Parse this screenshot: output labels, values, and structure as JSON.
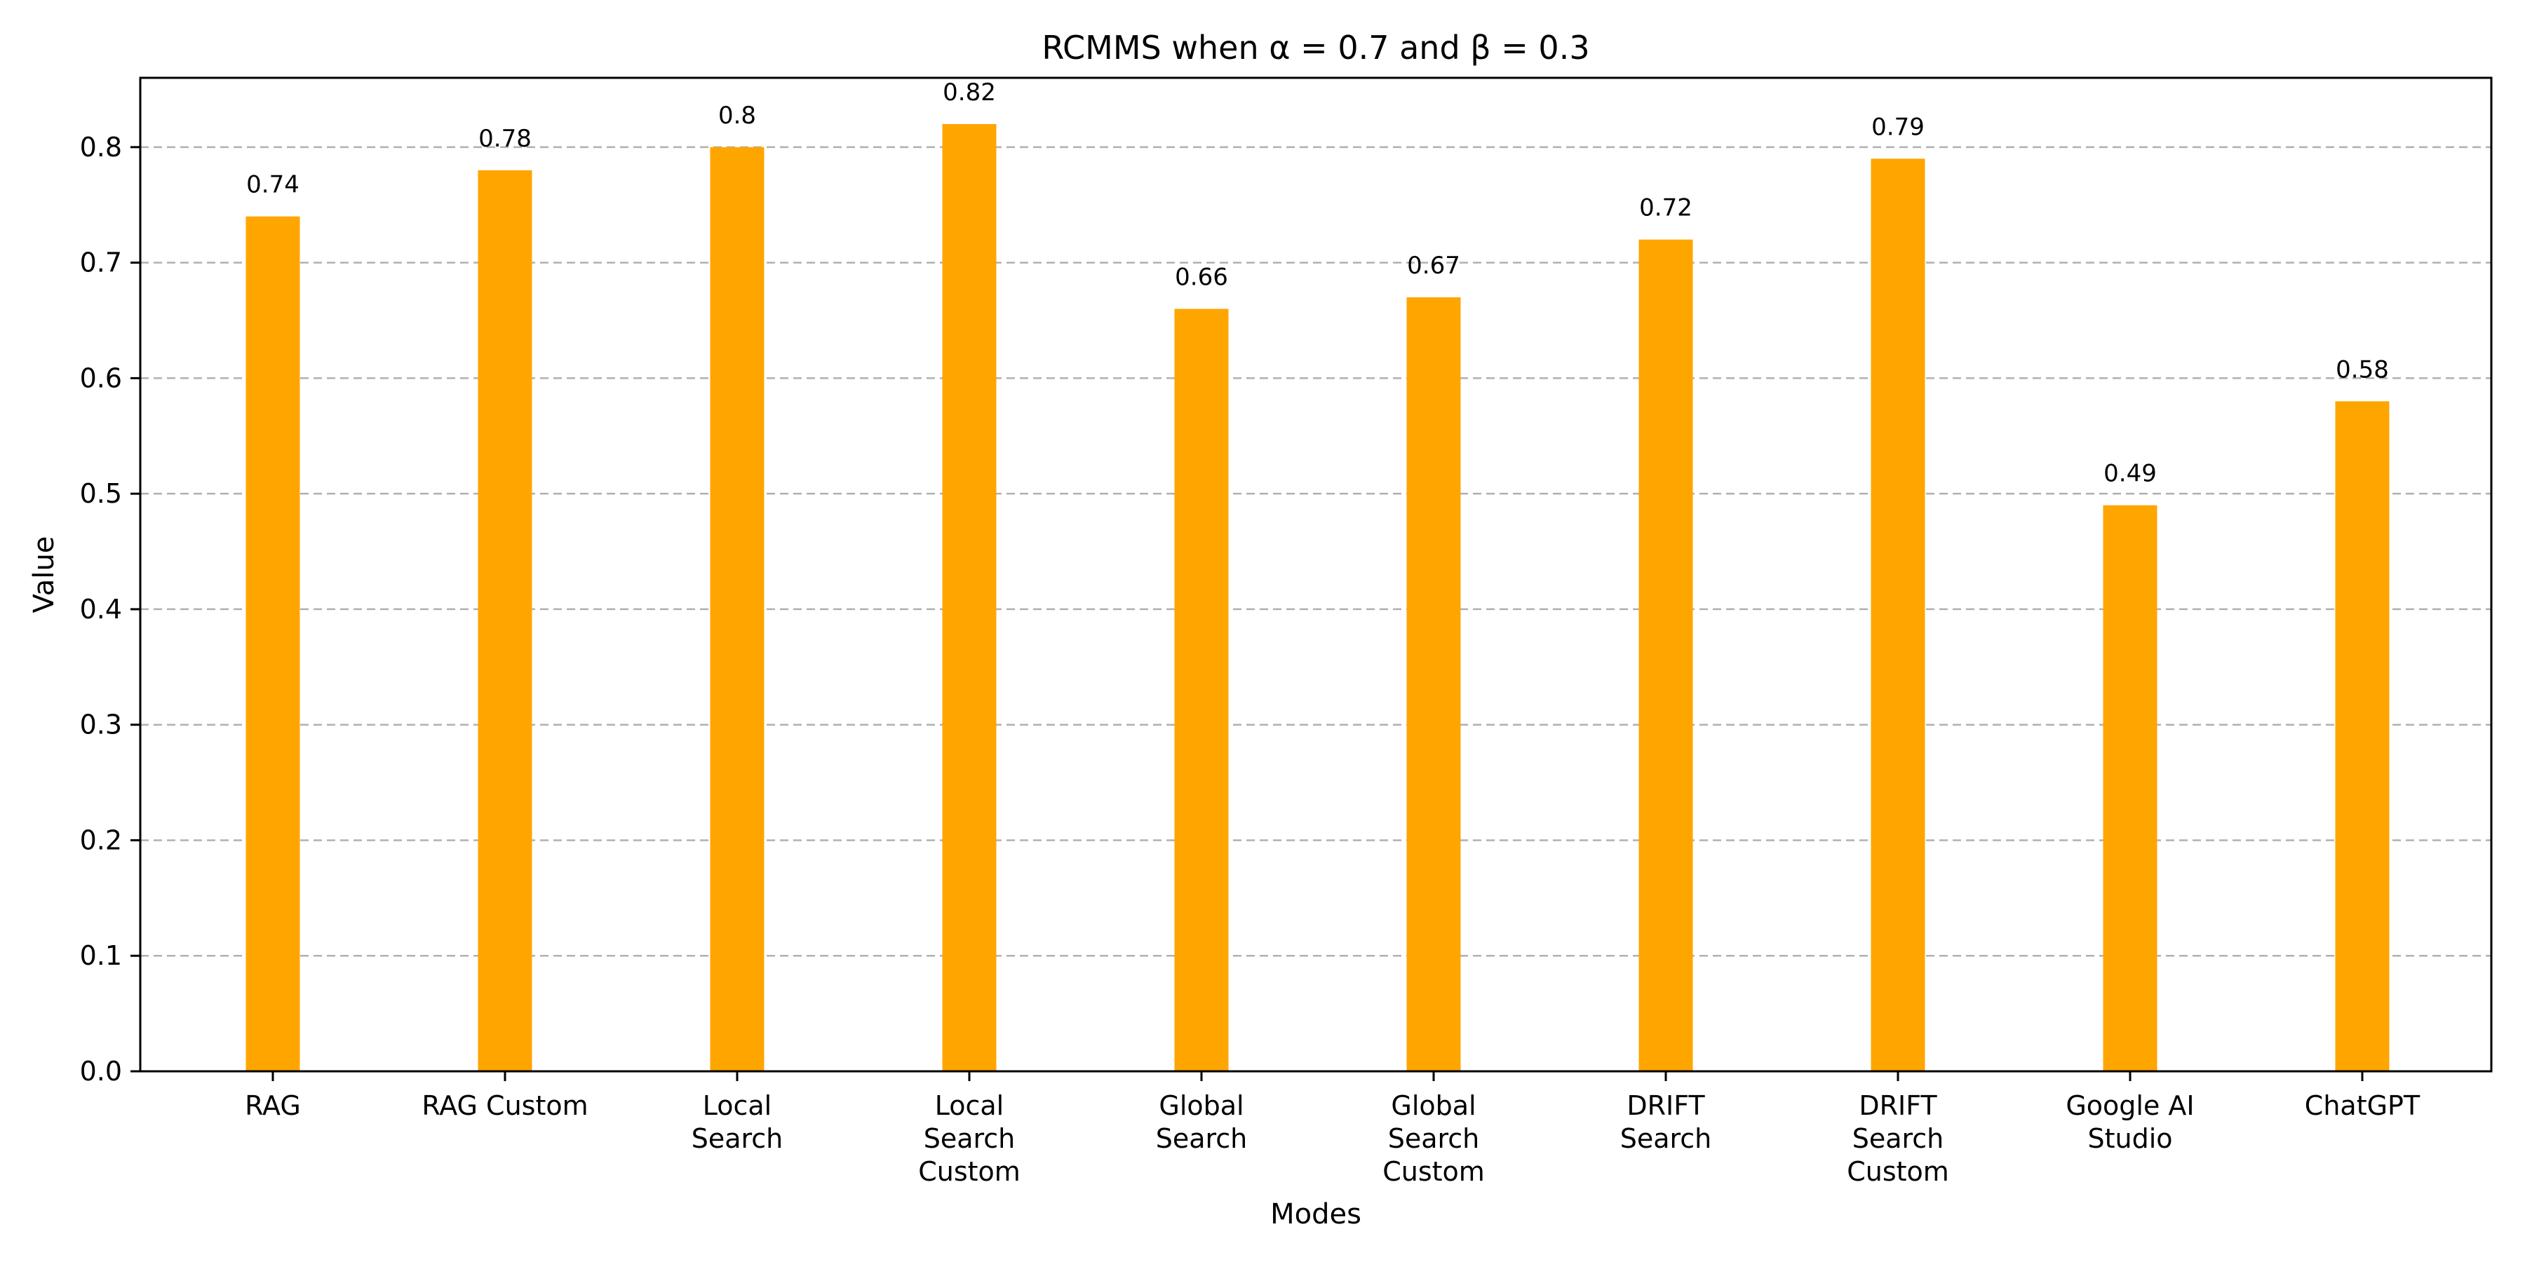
{
  "chart_data": {
    "type": "bar",
    "title": "RCMMS when α = 0.7 and β = 0.3",
    "xlabel": "Modes",
    "ylabel": "Value",
    "categories": [
      [
        "RAG"
      ],
      [
        "RAG Custom"
      ],
      [
        "Local",
        "Search"
      ],
      [
        "Local",
        "Search",
        "Custom"
      ],
      [
        "Global",
        "Search"
      ],
      [
        "Global",
        "Search",
        "Custom"
      ],
      [
        "DRIFT",
        "Search"
      ],
      [
        "DRIFT",
        "Search",
        "Custom"
      ],
      [
        "Google AI",
        "Studio"
      ],
      [
        "ChatGPT"
      ]
    ],
    "values": [
      0.74,
      0.78,
      0.8,
      0.82,
      0.66,
      0.67,
      0.72,
      0.79,
      0.49,
      0.58
    ],
    "value_labels": [
      "0.74",
      "0.78",
      "0.8",
      "0.82",
      "0.66",
      "0.67",
      "0.72",
      "0.79",
      "0.49",
      "0.58"
    ],
    "ylim": [
      0,
      0.86
    ],
    "yticks": [
      0.0,
      0.1,
      0.2,
      0.3,
      0.4,
      0.5,
      0.6,
      0.7,
      0.8
    ],
    "ytick_labels": [
      "0.0",
      "0.1",
      "0.2",
      "0.3",
      "0.4",
      "0.5",
      "0.6",
      "0.7",
      "0.8"
    ],
    "grid": "y-dashed",
    "bar_color": "#FFA500"
  }
}
